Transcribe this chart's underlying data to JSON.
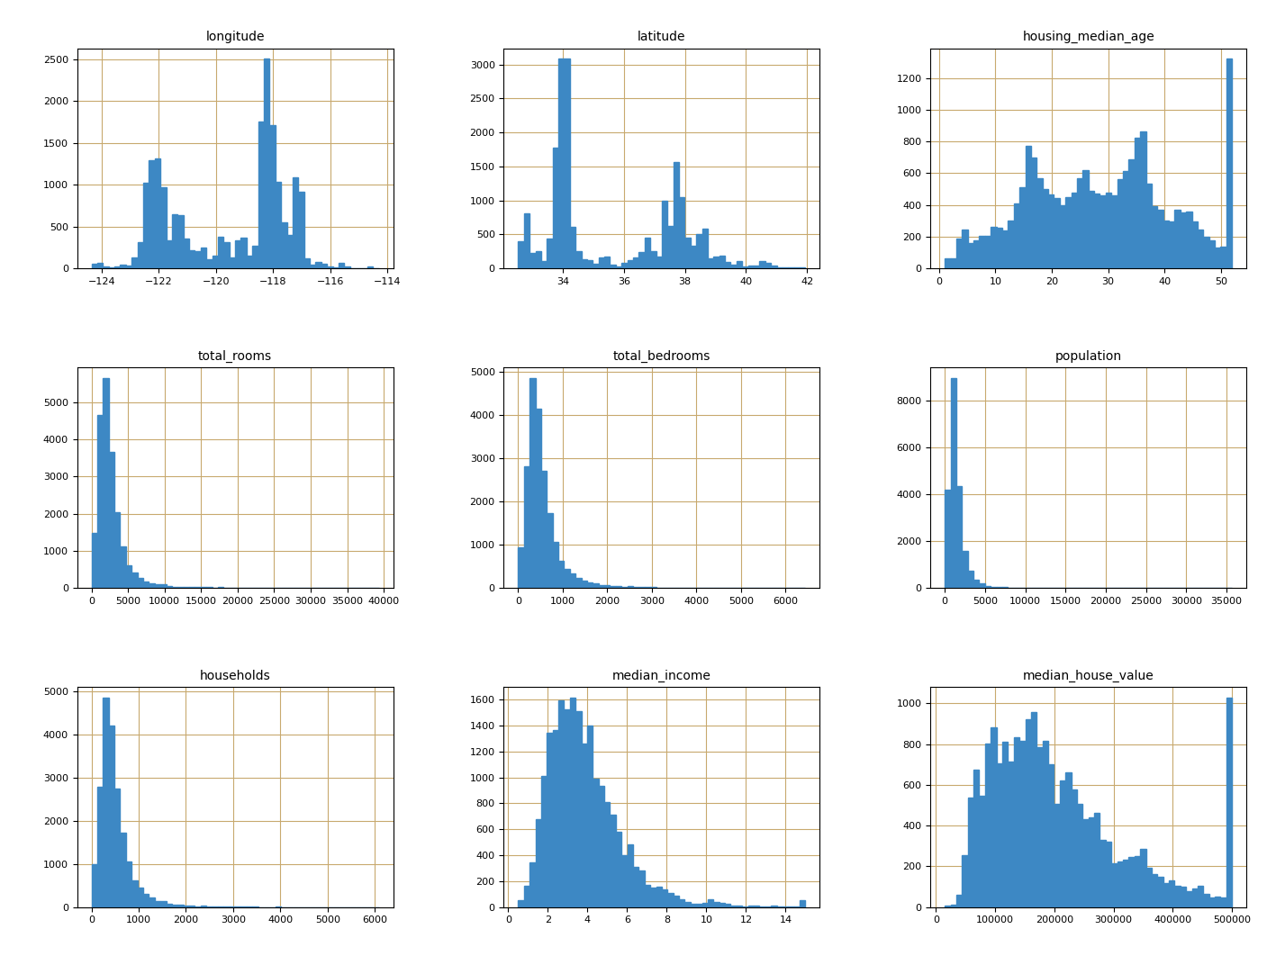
{
  "attributes": [
    "longitude",
    "latitude",
    "housing_median_age",
    "total_rooms",
    "total_bedrooms",
    "population",
    "households",
    "median_income",
    "median_house_value"
  ],
  "bar_color": "#3d88c4",
  "background_color": "#ffffff",
  "grid_color": "#c8a96e",
  "bins": 50,
  "figsize": [
    14.27,
    10.72
  ],
  "dpi": 100,
  "title_fontsize": 10,
  "tick_fontsize": 8,
  "grid_linewidth": 0.8,
  "subplot_rows": 3,
  "subplot_cols": 3,
  "wspace": 0.35,
  "hspace": 0.45
}
